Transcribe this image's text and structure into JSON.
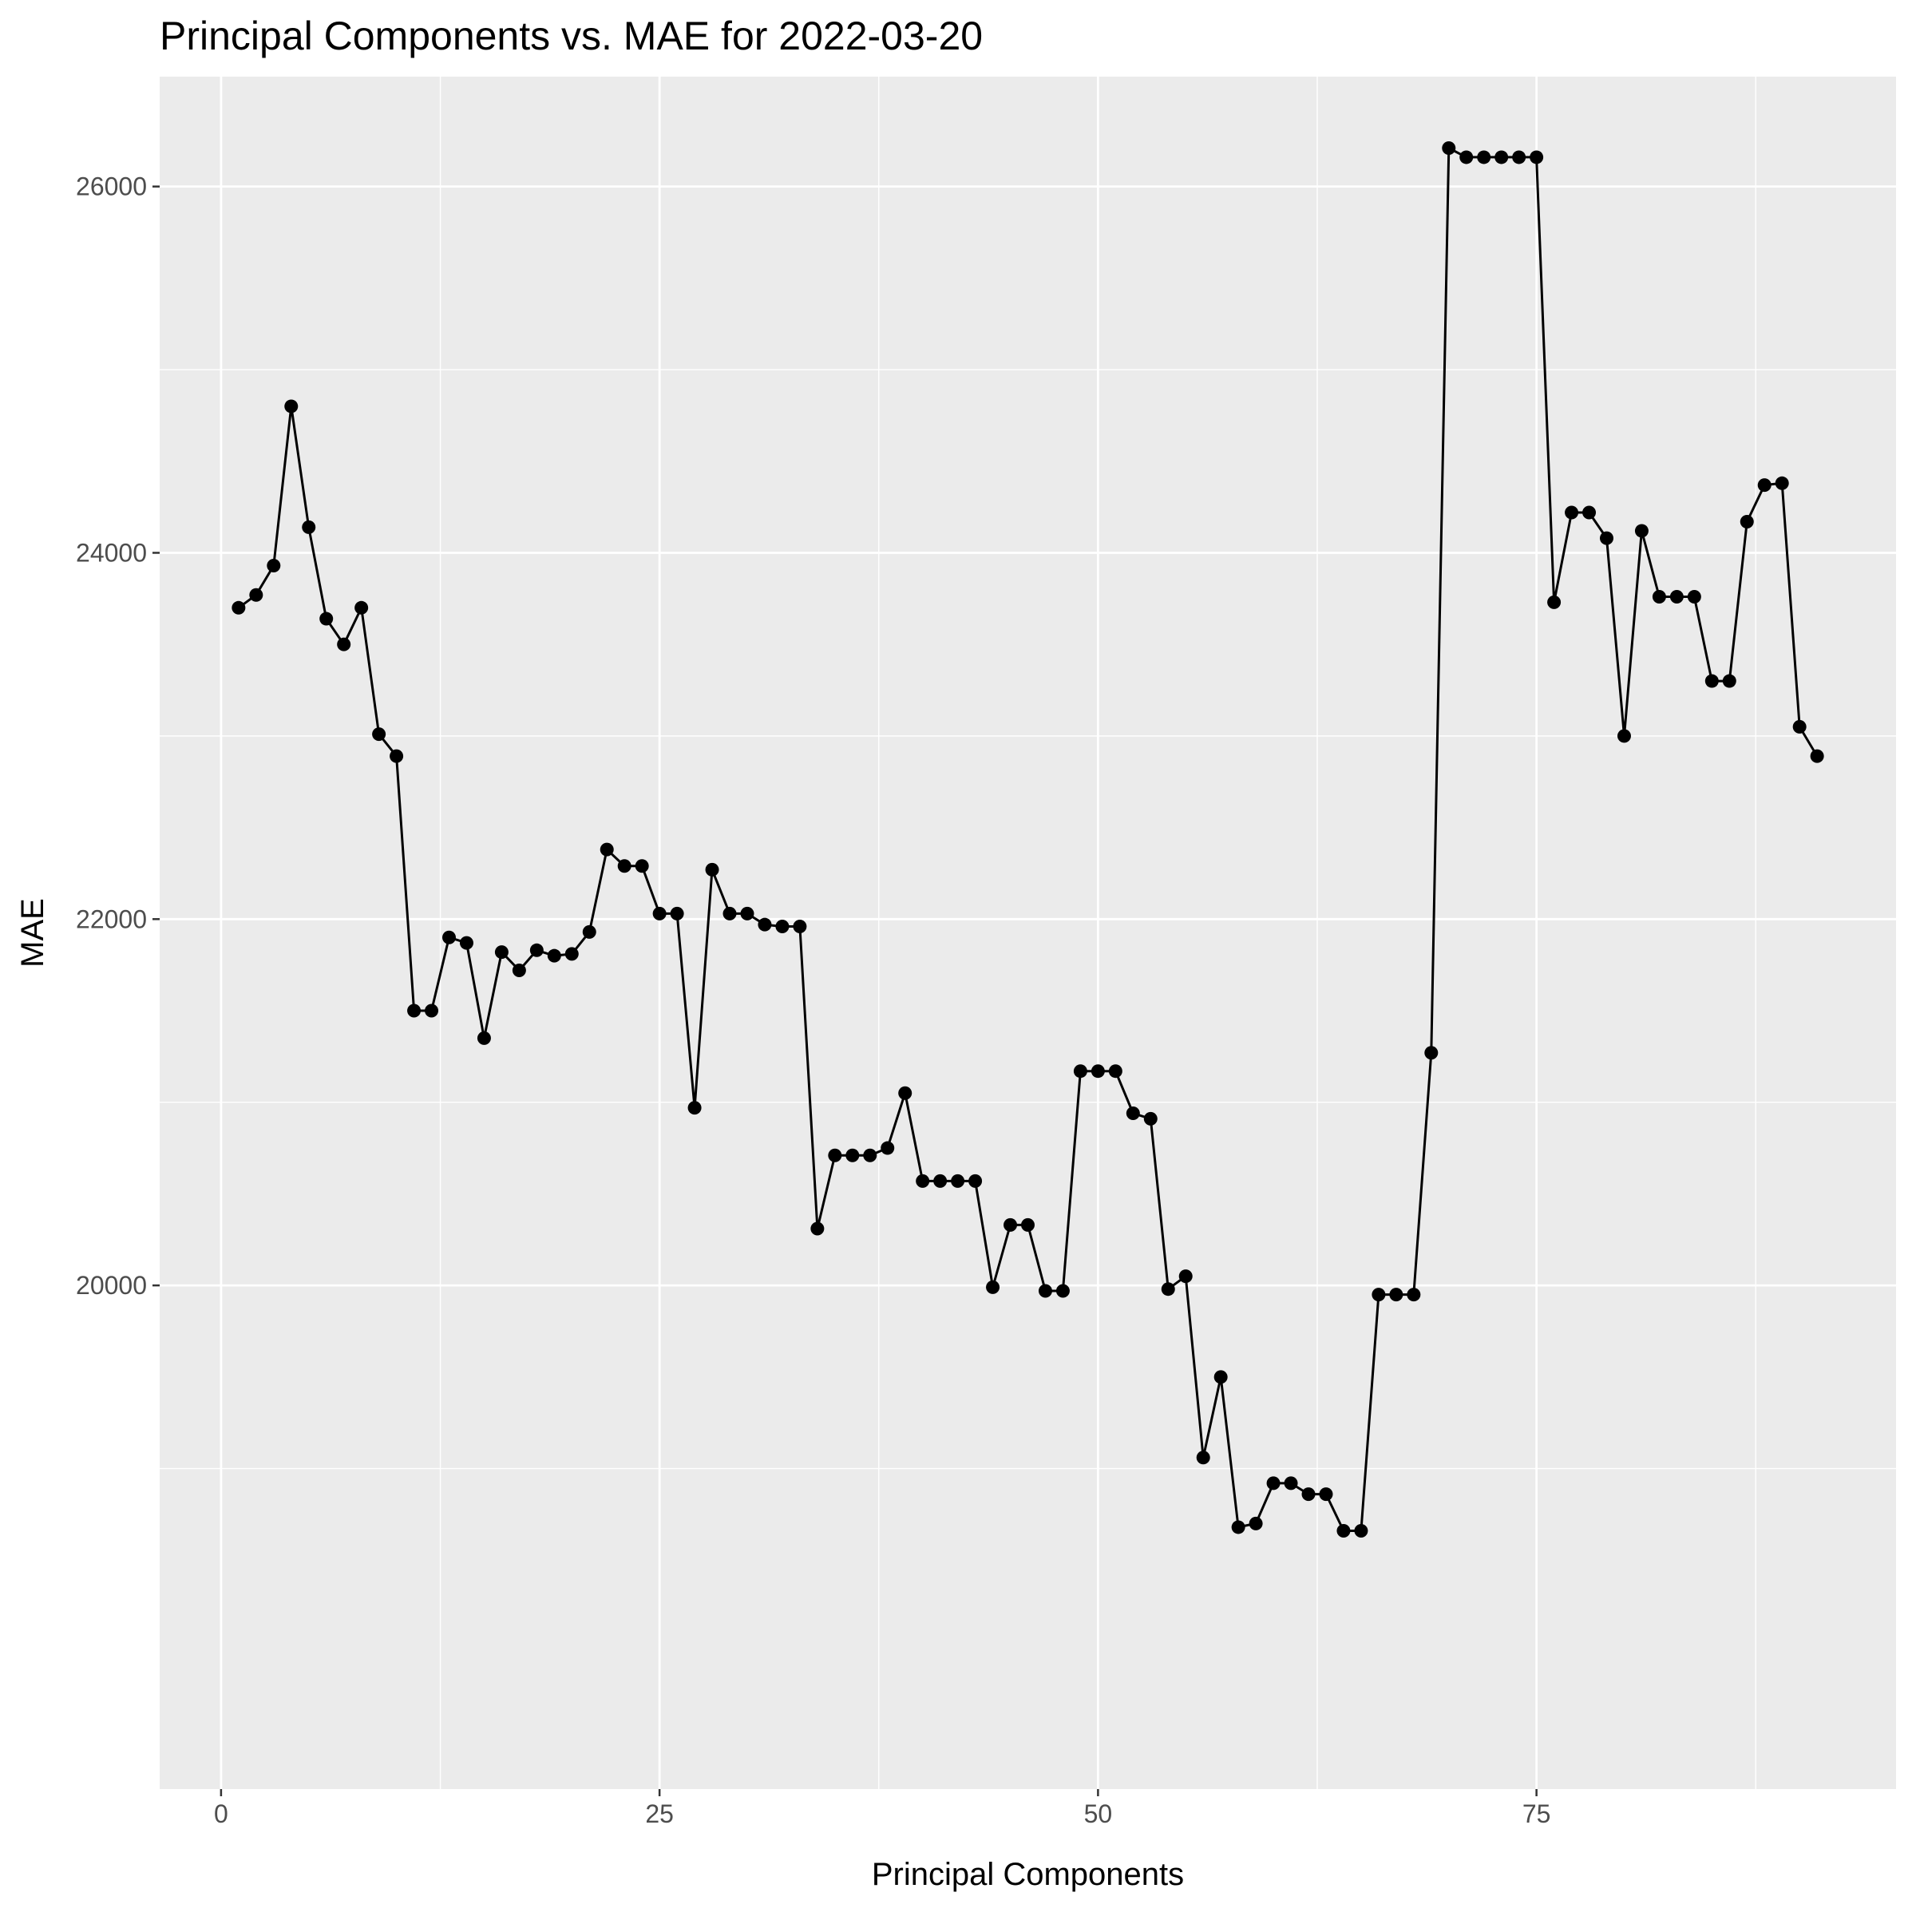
{
  "chart_data": {
    "type": "line",
    "title": "Principal Components vs. MAE for 2022-03-20",
    "xlabel": "Principal Components",
    "ylabel": "MAE",
    "xlim": [
      -3.5,
      95.5
    ],
    "ylim": [
      17250,
      26600
    ],
    "x_ticks": [
      0,
      25,
      50,
      75
    ],
    "x_minor_ticks": [
      12.5,
      37.5,
      62.5,
      87.5
    ],
    "y_ticks": [
      20000,
      22000,
      24000,
      26000
    ],
    "y_minor_ticks": [
      19000,
      21000,
      23000,
      25000
    ],
    "grid": true,
    "legend": "none",
    "colors": {
      "panel": "#ebebeb",
      "grid": "#ffffff",
      "line": "#000000",
      "point": "#000000"
    },
    "series": [
      {
        "x": [
          1,
          2,
          3,
          4,
          5,
          6,
          7,
          8,
          9,
          10,
          11,
          12,
          13,
          14,
          15,
          16,
          17,
          18,
          19,
          20,
          21,
          22,
          23,
          24,
          25,
          26,
          27,
          28,
          29,
          30,
          31,
          32,
          33,
          34,
          35,
          36,
          37,
          38,
          39,
          40,
          41,
          42,
          43,
          44,
          45,
          46,
          47,
          48,
          49,
          50,
          51,
          52,
          53,
          54,
          55,
          56,
          57,
          58,
          59,
          60,
          61,
          62,
          63,
          64,
          65,
          66,
          67,
          68,
          69,
          70,
          71,
          72,
          73,
          74,
          75,
          76,
          77,
          78,
          79,
          80,
          81,
          82,
          83,
          84,
          85,
          86,
          87,
          88,
          89,
          90,
          91
        ],
        "values": [
          23700,
          23770,
          23930,
          24800,
          24140,
          23640,
          23500,
          23700,
          23010,
          22890,
          21500,
          21500,
          21900,
          21870,
          21350,
          21820,
          21720,
          21830,
          21800,
          21810,
          21930,
          22380,
          22290,
          22290,
          22030,
          22030,
          20970,
          22270,
          22030,
          22030,
          21970,
          21960,
          21960,
          20310,
          20710,
          20710,
          20710,
          20750,
          21050,
          20570,
          20570,
          20570,
          20570,
          19990,
          20330,
          20330,
          19970,
          19970,
          21170,
          21170,
          21170,
          20940,
          20910,
          19980,
          20050,
          19060,
          19500,
          18680,
          18700,
          18920,
          18920,
          18860,
          18860,
          18660,
          18660,
          19950,
          19950,
          19950,
          21270,
          26210,
          26160,
          26160,
          26160,
          26160,
          26160,
          23730,
          24220,
          24220,
          24080,
          23000,
          24120,
          23760,
          23760,
          23760,
          23300,
          23300,
          24170,
          24370,
          24380,
          23050,
          22890
        ]
      }
    ]
  }
}
